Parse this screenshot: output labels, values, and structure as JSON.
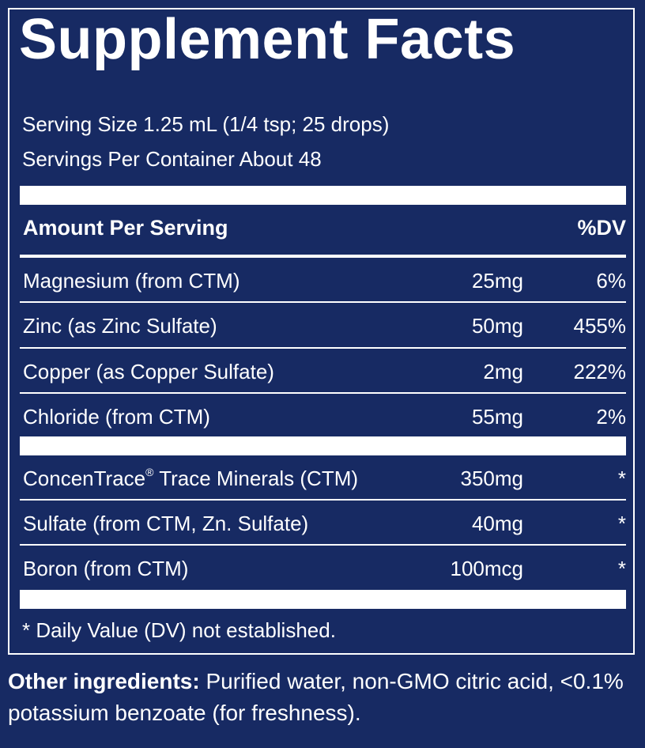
{
  "title": "Supplement Facts",
  "serving_size": "Serving Size 1.25 mL (1/4 tsp; 25 drops)",
  "servings_per_container": "Servings Per Container About 48",
  "header": {
    "amount_per_serving": "Amount Per Serving",
    "dv": "%DV"
  },
  "nutrients": [
    {
      "name": "Magnesium (from CTM)",
      "amount": "25mg",
      "dv": "6%"
    },
    {
      "name": "Zinc (as Zinc Sulfate)",
      "amount": "50mg",
      "dv": "455%"
    },
    {
      "name": "Copper (as Copper Sulfate)",
      "amount": "2mg",
      "dv": "222%"
    },
    {
      "name": "Chloride (from CTM)",
      "amount": "55mg",
      "dv": "2%"
    }
  ],
  "others": [
    {
      "name_main": "ConcenTrace",
      "name_mark": "®",
      "name_rest": " Trace Minerals (CTM)",
      "amount": "350mg",
      "dv": "*"
    },
    {
      "name": "Sulfate (from CTM, Zn. Sulfate)",
      "amount": "40mg",
      "dv": "*"
    },
    {
      "name": "Boron (from CTM)",
      "amount": "100mcg",
      "dv": "*"
    }
  ],
  "footnote": "* Daily Value (DV) not established.",
  "other_ingredients": {
    "label": "Other ingredients:",
    "text": " Purified water, non-GMO citric acid, <0.1% potassium benzoate (for freshness)."
  }
}
